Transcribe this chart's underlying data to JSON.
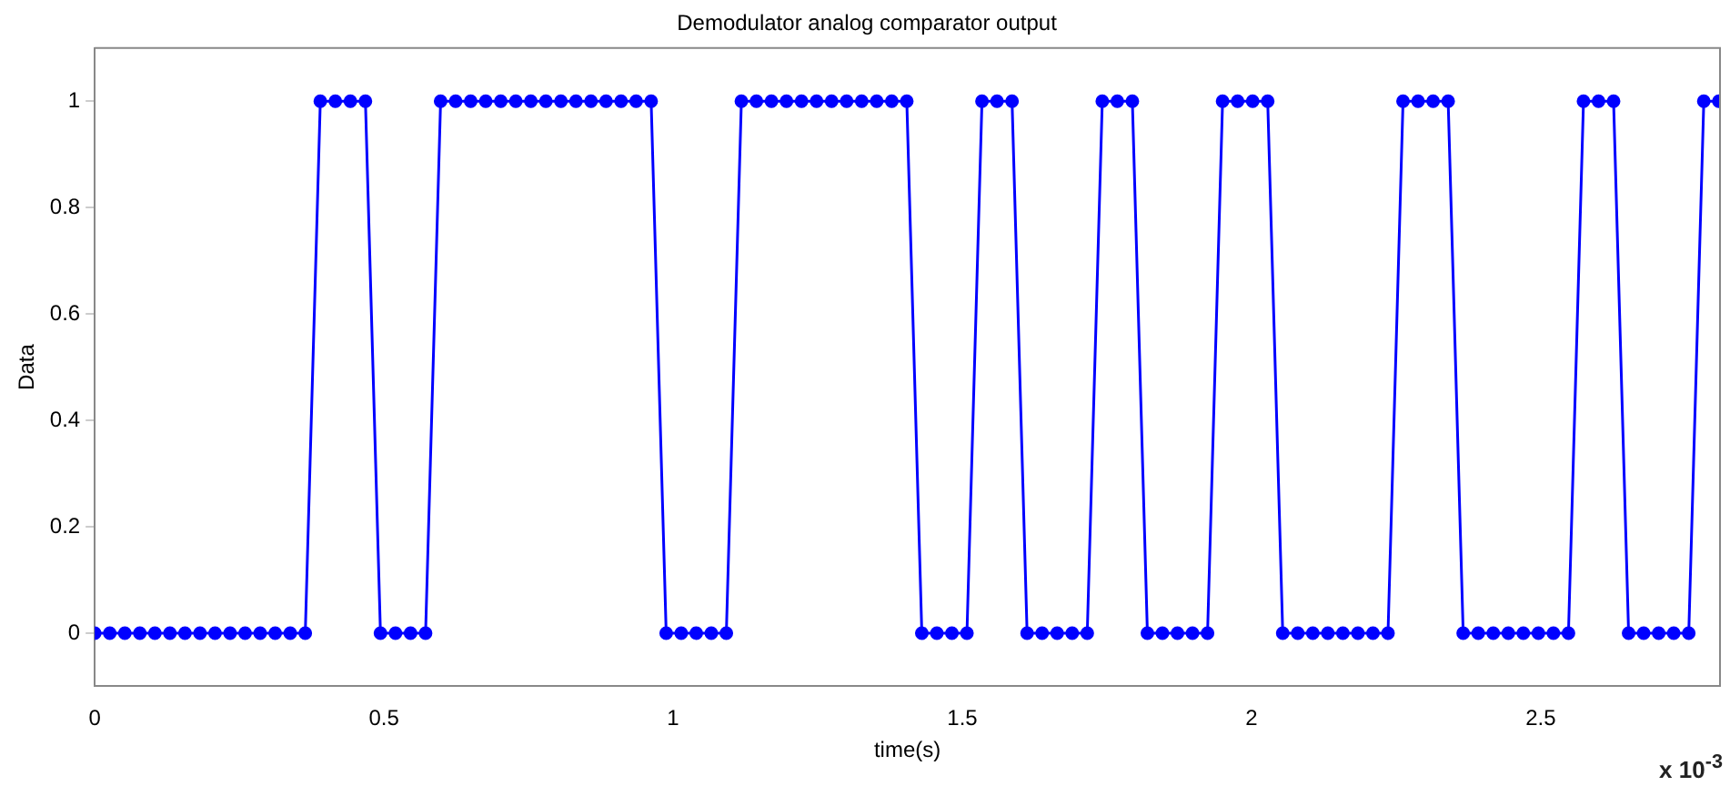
{
  "chart_data": {
    "type": "line",
    "title": "Demodulator analog comparator output",
    "xlabel": "time(s)",
    "ylabel": "Data",
    "annotations": [
      "x 10$^{-3}$"
    ],
    "x": [
      0,
      0.026,
      0.052,
      0.078,
      0.104,
      0.13,
      0.156,
      0.182,
      0.208,
      0.234,
      0.26,
      0.286,
      0.312,
      0.338,
      0.364,
      0.39,
      0.416,
      0.442,
      0.468,
      0.494,
      0.52,
      0.546,
      0.572,
      0.598,
      0.624,
      0.65,
      0.676,
      0.702,
      0.728,
      0.754,
      0.78,
      0.806,
      0.832,
      0.858,
      0.884,
      0.91,
      0.936,
      0.962,
      0.988,
      1.014,
      1.04,
      1.066,
      1.092,
      1.118,
      1.144,
      1.17,
      1.196,
      1.222,
      1.248,
      1.274,
      1.3,
      1.326,
      1.352,
      1.378,
      1.404,
      1.43,
      1.456,
      1.482,
      1.508,
      1.534,
      1.56,
      1.586,
      1.612,
      1.638,
      1.664,
      1.69,
      1.716,
      1.742,
      1.768,
      1.794,
      1.82,
      1.846,
      1.872,
      1.898,
      1.924,
      1.95,
      1.976,
      2.002,
      2.028,
      2.054,
      2.08,
      2.106,
      2.132,
      2.158,
      2.184,
      2.21,
      2.236,
      2.262,
      2.288,
      2.314,
      2.34,
      2.366,
      2.392,
      2.418,
      2.444,
      2.47,
      2.496,
      2.522,
      2.548,
      2.574,
      2.6,
      2.626,
      2.652,
      2.678,
      2.704,
      2.73,
      2.756,
      2.782,
      2.808
    ],
    "series": [
      {
        "color": "#0000ff",
        "values": [
          0,
          0,
          0,
          0,
          0,
          0,
          0,
          0,
          0,
          0,
          0,
          0,
          0,
          0,
          0,
          1,
          1,
          1,
          1,
          0,
          0,
          0,
          0,
          1,
          1,
          1,
          1,
          1,
          1,
          1,
          1,
          1,
          1,
          1,
          1,
          1,
          1,
          1,
          0,
          0,
          0,
          0,
          0,
          1,
          1,
          1,
          1,
          1,
          1,
          1,
          1,
          1,
          1,
          1,
          1,
          0,
          0,
          0,
          0,
          1,
          1,
          1,
          0,
          0,
          0,
          0,
          0,
          1,
          1,
          1,
          0,
          0,
          0,
          0,
          0,
          1,
          1,
          1,
          1,
          0,
          0,
          0,
          0,
          0,
          0,
          0,
          0,
          1,
          1,
          1,
          1,
          0,
          0,
          0,
          0,
          0,
          0,
          0,
          0,
          1,
          1,
          1,
          0,
          0,
          0,
          0,
          0,
          1,
          1
        ]
      }
    ],
    "xlim": [
      0,
      2.81
    ],
    "xticks": [
      0,
      0.5,
      1,
      1.5,
      2,
      2.5
    ],
    "ylim": [
      -0.1,
      1.1
    ],
    "yticks": [
      0,
      0.2,
      0.4,
      0.6,
      0.8,
      1
    ],
    "grid": false,
    "legend": false,
    "marker": "circle",
    "line_style": "solid"
  }
}
